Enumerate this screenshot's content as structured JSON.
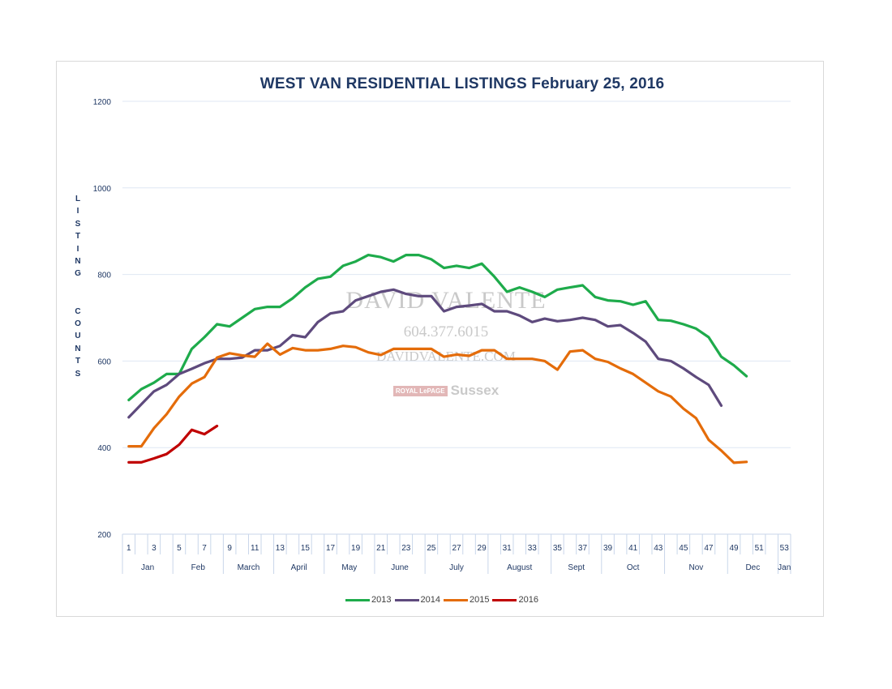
{
  "chart_data": {
    "type": "line",
    "title": "WEST VAN RESIDENTIAL LISTINGS February 25, 2016",
    "ylabel": "LISTING COUNTS",
    "xlabel": "",
    "ylim": [
      200,
      1200
    ],
    "xlim": [
      0.5,
      53.5
    ],
    "y_ticks": [
      "200",
      "400",
      "600",
      "800",
      "1000",
      "1200"
    ],
    "x_ticks": [
      "1",
      "3",
      "5",
      "7",
      "9",
      "11",
      "13",
      "15",
      "17",
      "19",
      "21",
      "23",
      "25",
      "27",
      "29",
      "31",
      "33",
      "35",
      "37",
      "39",
      "41",
      "43",
      "45",
      "47",
      "49",
      "51",
      "53"
    ],
    "month_labels": [
      {
        "label": "Jan",
        "start": 1,
        "end": 4
      },
      {
        "label": "Feb",
        "start": 5,
        "end": 8
      },
      {
        "label": "March",
        "start": 9,
        "end": 12
      },
      {
        "label": "April",
        "start": 13,
        "end": 16
      },
      {
        "label": "May",
        "start": 17,
        "end": 20
      },
      {
        "label": "June",
        "start": 21,
        "end": 24
      },
      {
        "label": "July",
        "start": 25,
        "end": 29
      },
      {
        "label": "August",
        "start": 30,
        "end": 34
      },
      {
        "label": "Sept",
        "start": 35,
        "end": 38
      },
      {
        "label": "Oct",
        "start": 39,
        "end": 43
      },
      {
        "label": "Nov",
        "start": 44,
        "end": 48
      },
      {
        "label": "Dec",
        "start": 49,
        "end": 52
      },
      {
        "label": "Jan",
        "start": 53,
        "end": 53
      }
    ],
    "series": [
      {
        "name": "2013",
        "color": "#1eab4b",
        "values": [
          510,
          535,
          550,
          570,
          570,
          628,
          655,
          685,
          680,
          700,
          720,
          725,
          725,
          745,
          770,
          790,
          795,
          820,
          830,
          845,
          840,
          830,
          845,
          845,
          835,
          815,
          820,
          815,
          825,
          795,
          760,
          770,
          760,
          748,
          765,
          770,
          775,
          748,
          740,
          738,
          730,
          738,
          695,
          693,
          685,
          675,
          655,
          610,
          590,
          565
        ]
      },
      {
        "name": "2014",
        "color": "#5e4a7d",
        "values": [
          470,
          500,
          530,
          545,
          570,
          582,
          595,
          605,
          605,
          608,
          625,
          625,
          635,
          660,
          655,
          690,
          710,
          715,
          740,
          750,
          760,
          765,
          755,
          750,
          750,
          715,
          725,
          728,
          732,
          715,
          715,
          705,
          690,
          698,
          692,
          695,
          700,
          695,
          680,
          683,
          665,
          645,
          605,
          600,
          583,
          563,
          545,
          497
        ]
      },
      {
        "name": "2015",
        "color": "#e46c0a",
        "values": [
          403,
          403,
          445,
          477,
          518,
          548,
          563,
          608,
          618,
          613,
          610,
          640,
          615,
          630,
          625,
          625,
          628,
          635,
          632,
          620,
          614,
          628,
          628,
          628,
          628,
          610,
          615,
          612,
          625,
          625,
          605,
          605,
          605,
          600,
          580,
          622,
          625,
          605,
          598,
          583,
          570,
          550,
          530,
          518,
          490,
          468,
          418,
          393,
          365,
          367
        ]
      },
      {
        "name": "2016",
        "color": "#c00000",
        "values": [
          366,
          366,
          375,
          385,
          407,
          441,
          431,
          450
        ]
      }
    ]
  },
  "watermark": {
    "name": "DAVID VALENTE",
    "phone": "604.377.6015",
    "web": "DAVIDVALENTE.COM",
    "brand_small": "ROYAL LePAGE",
    "brand": "Sussex"
  }
}
